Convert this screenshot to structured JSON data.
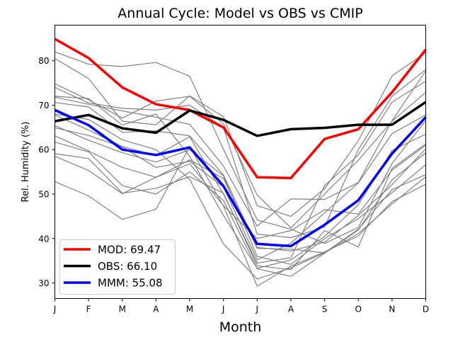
{
  "chart_data": {
    "type": "line",
    "title": "Annual Cycle: Model vs OBS vs CMIP",
    "xlabel": "Month",
    "ylabel": "Rel. Humidity (%)",
    "x": [
      "J",
      "F",
      "M",
      "A",
      "M",
      "J",
      "J",
      "A",
      "S",
      "O",
      "N",
      "D"
    ],
    "ylim": [
      26.5,
      88
    ],
    "yticks": [
      30,
      40,
      50,
      60,
      70,
      80
    ],
    "grid": false,
    "legend_position": "lower-left",
    "highlight_series": [
      {
        "name": "MOD",
        "legend": "MOD: 69.47",
        "color": "#ff0000",
        "values": [
          84.9,
          80.6,
          74.0,
          70.2,
          68.9,
          65.0,
          53.8,
          53.6,
          62.4,
          64.6,
          72.9,
          82.5
        ]
      },
      {
        "name": "OBS",
        "legend": "OBS: 66.10",
        "color": "#000000",
        "values": [
          66.4,
          67.8,
          64.8,
          63.8,
          68.8,
          66.7,
          63.1,
          64.6,
          64.9,
          65.6,
          65.6,
          70.7
        ]
      },
      {
        "name": "MMM",
        "legend": "MMM: 55.08",
        "color": "#0000ff",
        "values": [
          68.9,
          65.5,
          60.0,
          58.8,
          60.5,
          51.8,
          38.8,
          38.3,
          43.1,
          48.6,
          59.1,
          67.3
        ]
      }
    ],
    "ensemble_color": "#808080",
    "ensemble_series": [
      [
        82.0,
        79.2,
        78.7,
        79.6,
        76.5,
        60.1,
        44.2,
        42.1,
        38.9,
        42.5,
        56.9,
        66.5
      ],
      [
        80.5,
        76.0,
        66.4,
        65.6,
        72.1,
        67.4,
        47.4,
        45.0,
        51.2,
        62.0,
        76.6,
        81.8
      ],
      [
        74.0,
        70.5,
        69.3,
        68.9,
        70.0,
        65.0,
        41.0,
        40.2,
        42.6,
        60.0,
        72.0,
        78.0
      ],
      [
        74.8,
        71.2,
        67.1,
        70.9,
        72.0,
        65.8,
        49.8,
        42.4,
        50.0,
        57.6,
        66.4,
        72.9
      ],
      [
        71.8,
        70.2,
        68.7,
        67.3,
        65.7,
        56.3,
        42.8,
        48.9,
        48.8,
        52.6,
        66.5,
        77.7
      ],
      [
        70.6,
        69.6,
        63.9,
        64.2,
        63.1,
        54.3,
        38.0,
        37.2,
        39.2,
        45.2,
        52.1,
        60.2
      ],
      [
        67.8,
        64.4,
        60.7,
        58.7,
        62.9,
        50.0,
        34.5,
        35.7,
        51.9,
        58.8,
        70.7,
        75.4
      ],
      [
        65.4,
        62.1,
        59.3,
        57.2,
        60.0,
        54.1,
        36.0,
        34.2,
        40.0,
        44.5,
        50.3,
        56.6
      ],
      [
        64.9,
        63.2,
        60.6,
        56.0,
        57.4,
        51.6,
        35.2,
        39.0,
        45.8,
        52.5,
        63.6,
        67.8
      ],
      [
        63.1,
        59.7,
        56.0,
        53.8,
        56.8,
        47.4,
        40.0,
        41.8,
        46.5,
        45.5,
        55.4,
        61.0
      ],
      [
        61.7,
        59.5,
        51.9,
        50.0,
        55.0,
        48.6,
        33.2,
        31.5,
        36.7,
        41.9,
        53.2,
        59.3
      ],
      [
        59.1,
        58.0,
        50.2,
        51.3,
        53.9,
        50.2,
        33.9,
        33.0,
        41.8,
        38.1,
        55.8,
        61.3
      ],
      [
        58.5,
        55.3,
        50.1,
        53.8,
        57.7,
        53.5,
        37.8,
        37.6,
        36.8,
        42.1,
        51.0,
        54.4
      ],
      [
        52.8,
        49.6,
        44.3,
        46.6,
        60.7,
        47.3,
        29.3,
        33.8,
        37.0,
        40.6,
        48.3,
        52.2
      ],
      [
        72.0,
        71.5,
        65.5,
        68.0,
        58.5,
        45.2,
        33.3,
        35.2,
        40.5,
        47.6,
        59.8,
        63.5
      ],
      [
        68.0,
        66.8,
        62.2,
        60.0,
        53.3,
        38.8,
        30.9,
        33.4,
        36.8,
        41.1,
        47.8,
        53.9
      ]
    ]
  }
}
